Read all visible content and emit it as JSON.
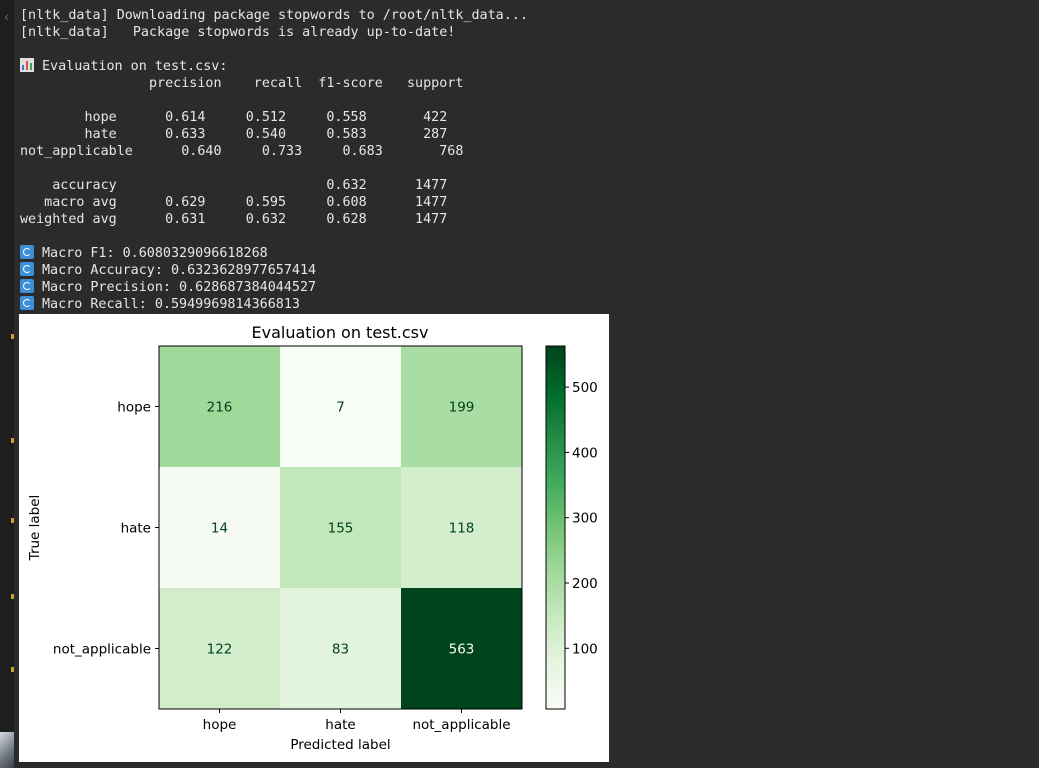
{
  "console": {
    "lines": [
      "[nltk_data] Downloading package stopwords to /root/nltk_data...",
      "[nltk_data]   Package stopwords is already up-to-date!",
      "",
      "Evaluation on test.csv:",
      "                precision    recall  f1-score   support",
      "",
      "        hope      0.614     0.512     0.558       422",
      "        hate      0.633     0.540     0.583       287",
      "not_applicable      0.640     0.733     0.683       768",
      "",
      "    accuracy                          0.632      1477",
      "   macro avg      0.629     0.595     0.608      1477",
      "weighted avg      0.631     0.632     0.628      1477",
      "",
      "Macro F1: 0.6080329096618268",
      "Macro Accuracy: 0.6323628977657414",
      "Macro Precision: 0.628687384044527",
      "Macro Recall: 0.5949969814366813"
    ]
  },
  "chart_data": {
    "type": "heatmap",
    "title": "Evaluation on test.csv",
    "xlabel": "Predicted label",
    "ylabel": "True label",
    "x_categories": [
      "hope",
      "hate",
      "not_applicable"
    ],
    "y_categories": [
      "hope",
      "hate",
      "not_applicable"
    ],
    "values": [
      [
        216,
        7,
        199
      ],
      [
        14,
        155,
        118
      ],
      [
        122,
        83,
        563
      ]
    ],
    "colorbar": {
      "ticks": [
        100,
        200,
        300,
        400,
        500
      ],
      "min": 7,
      "max": 563
    },
    "colormap": "Greens"
  }
}
